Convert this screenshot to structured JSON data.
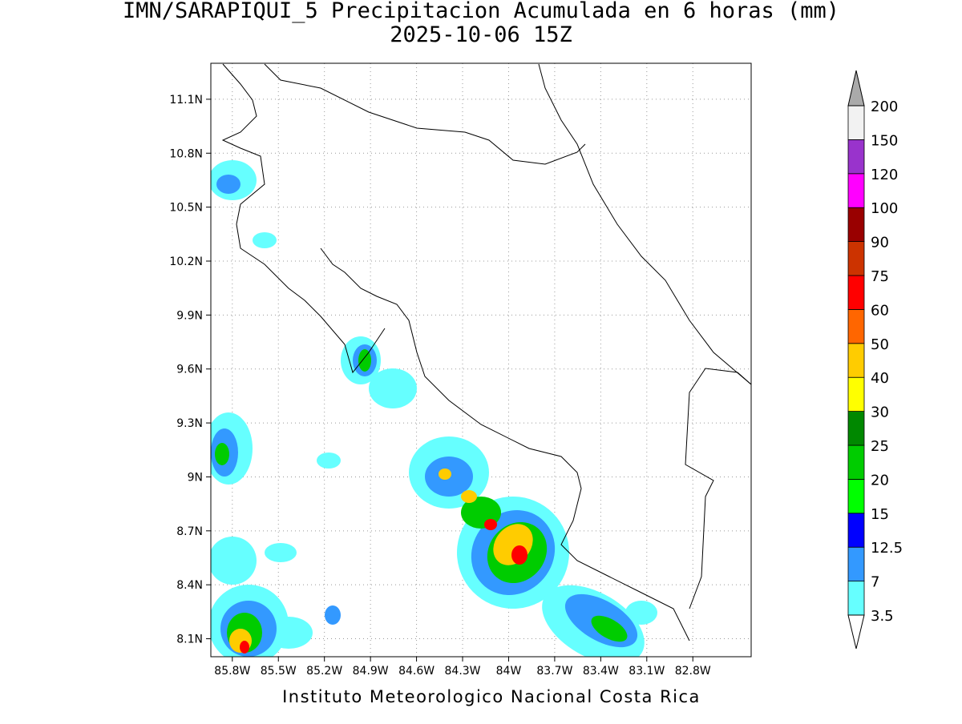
{
  "title": "IMN/SARAPIQUI_5 Precipitacion Acumulada en 6 horas (mm)",
  "subtitle": "2025-10-06 15Z",
  "map": {
    "xlim": [
      -85.94,
      -82.42
    ],
    "ylim": [
      8.0,
      11.3
    ],
    "lon_ticks": [
      {
        "value": -85.8,
        "label": "85.8W"
      },
      {
        "value": -85.5,
        "label": "85.5W"
      },
      {
        "value": -85.2,
        "label": "85.2W"
      },
      {
        "value": -84.9,
        "label": "84.9W"
      },
      {
        "value": -84.6,
        "label": "84.6W"
      },
      {
        "value": -84.3,
        "label": "84.3W"
      },
      {
        "value": -84.0,
        "label": "84W"
      },
      {
        "value": -83.7,
        "label": "83.7W"
      },
      {
        "value": -83.4,
        "label": "83.4W"
      },
      {
        "value": -83.1,
        "label": "83.1W"
      },
      {
        "value": -82.8,
        "label": "82.8W"
      }
    ],
    "lat_ticks": [
      {
        "value": 8.1,
        "label": "8.1N"
      },
      {
        "value": 8.4,
        "label": "8.4N"
      },
      {
        "value": 8.7,
        "label": "8.7N"
      },
      {
        "value": 9.0,
        "label": "9N"
      },
      {
        "value": 9.3,
        "label": "9.3N"
      },
      {
        "value": 9.6,
        "label": "9.6N"
      },
      {
        "value": 9.9,
        "label": "9.9N"
      },
      {
        "value": 10.2,
        "label": "10.2N"
      },
      {
        "value": 10.5,
        "label": "10.5N"
      },
      {
        "value": 10.8,
        "label": "10.8N"
      },
      {
        "value": 11.1,
        "label": "11.1N"
      }
    ]
  },
  "colorbar": {
    "levels": [
      "3.5",
      "7",
      "12.5",
      "15",
      "20",
      "25",
      "30",
      "40",
      "50",
      "60",
      "75",
      "90",
      "100",
      "120",
      "150",
      "200"
    ],
    "colors": [
      "#66ffff",
      "#3399ff",
      "#0000ff",
      "#00ff00",
      "#00cc00",
      "#008800",
      "#ffff00",
      "#ffcc00",
      "#ff6600",
      "#ff0000",
      "#cc3300",
      "#990000",
      "#ff00ff",
      "#9933cc",
      "#f2f2f2"
    ],
    "under_color": "#ffffff",
    "over_color": "#aaaaaa"
  },
  "footer": "Instituto Meteorologico Nacional Costa Rica"
}
